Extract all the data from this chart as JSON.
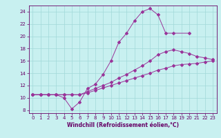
{
  "xlabel": "Windchill (Refroidissement éolien,°C)",
  "bg_color": "#c8f0f0",
  "grid_color": "#a0d8d8",
  "line_color": "#993399",
  "xlim": [
    -0.5,
    23.5
  ],
  "ylim": [
    7.5,
    25.0
  ],
  "xticks": [
    0,
    1,
    2,
    3,
    4,
    5,
    6,
    7,
    8,
    9,
    10,
    11,
    12,
    13,
    14,
    15,
    16,
    17,
    18,
    19,
    20,
    21,
    22,
    23
  ],
  "yticks": [
    8,
    10,
    12,
    14,
    16,
    18,
    20,
    22,
    24
  ],
  "line1_x": [
    0,
    1,
    2,
    3,
    4,
    5,
    6,
    7,
    8,
    9,
    10,
    11,
    12,
    13,
    14,
    15,
    16,
    17,
    18,
    20
  ],
  "line1_y": [
    10.5,
    10.5,
    10.5,
    10.5,
    10.0,
    8.2,
    9.3,
    11.5,
    12.2,
    13.8,
    16.0,
    19.0,
    20.5,
    22.5,
    24.0,
    24.5,
    23.5,
    20.5,
    20.5,
    20.5
  ],
  "line2_x": [
    0,
    1,
    2,
    3,
    4,
    5,
    6,
    7,
    8,
    9,
    10,
    11,
    12,
    13,
    14,
    15,
    16,
    17,
    18,
    19,
    20,
    21,
    22,
    23
  ],
  "line2_y": [
    10.5,
    10.5,
    10.5,
    10.5,
    10.5,
    10.5,
    10.5,
    11.0,
    11.5,
    12.0,
    12.5,
    13.2,
    13.8,
    14.5,
    15.2,
    16.0,
    17.0,
    17.5,
    17.8,
    17.5,
    17.2,
    16.7,
    16.5,
    16.2
  ],
  "line3_x": [
    0,
    1,
    2,
    3,
    4,
    5,
    6,
    7,
    8,
    9,
    10,
    11,
    12,
    13,
    14,
    15,
    16,
    17,
    18,
    19,
    20,
    21,
    22,
    23
  ],
  "line3_y": [
    10.5,
    10.5,
    10.5,
    10.5,
    10.5,
    10.5,
    10.5,
    10.8,
    11.2,
    11.6,
    12.0,
    12.4,
    12.8,
    13.2,
    13.6,
    14.0,
    14.5,
    14.8,
    15.2,
    15.4,
    15.5,
    15.6,
    15.8,
    16.0
  ],
  "label_fontsize": 5.5,
  "tick_fontsize": 5.0
}
